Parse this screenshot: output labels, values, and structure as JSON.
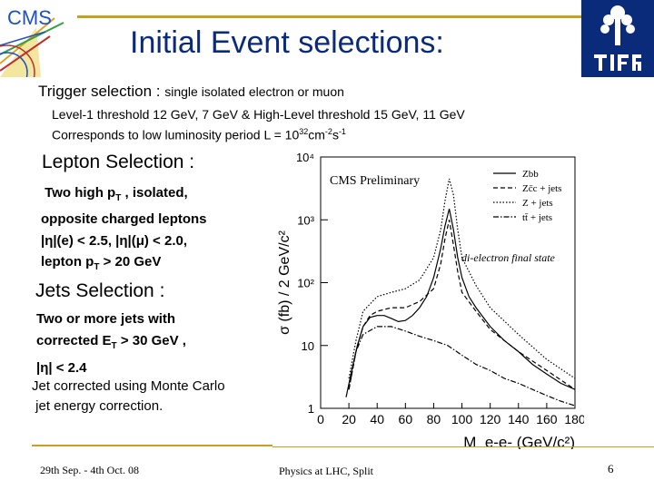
{
  "header": {
    "title": "Initial Event selections:",
    "cms_logo_text": "CMS",
    "logos": [
      "cms-logo",
      "tifr-logo"
    ]
  },
  "trigger": {
    "label": "Trigger   selection : ",
    "detail": "single isolated electron or  muon",
    "line2": "Level-1 threshold 12 GeV, 7 GeV  & High-Level threshold 15 GeV,  11 GeV",
    "line3_prefix": "Corresponds to low luminosity period L = 10",
    "line3_exp": "32",
    "line3_unit": "cm",
    "line3_exp2": "-2",
    "line3_s": "s",
    "line3_exp3": "-1"
  },
  "lepton": {
    "title": "Lepton Selection :",
    "line1": "Two high p",
    "line1_sub": "T",
    "line1_rest": " ,  isolated,",
    "line2": "opposite charged leptons",
    "line3": "|η|(e) < 2.5, |η|(μ) < 2.0,",
    "line4": "lepton p",
    "line4_sub": "T",
    "line4_rest": " > 20 GeV"
  },
  "jets": {
    "title": "Jets Selection :",
    "line1": "Two or more jets with",
    "line2": "corrected  E",
    "line2_sub": "T",
    "line2_rest": " > 30 GeV ,",
    "line3": "|η| < 2.4",
    "corr1": "Jet corrected using Monte Carlo",
    "corr2": "jet energy correction."
  },
  "footer": {
    "left": "29th Sep. - 4th Oct.  08",
    "center": "Physics at LHC, Split",
    "page": "6"
  },
  "chart_data": {
    "type": "line",
    "title": "CMS Preliminary",
    "annotation": "di-electron final state",
    "ylabel": "σ (fb) / 2 GeV/c²",
    "xlabel": "M_e-e- (GeV/c²)",
    "yscale": "log",
    "ylim": [
      1,
      10000
    ],
    "xlim": [
      0,
      180
    ],
    "yticks": [
      "10⁴",
      "10³",
      "10²",
      "10",
      "1"
    ],
    "xticks": [
      "0",
      "20",
      "40",
      "60",
      "80",
      "100",
      "120",
      "140",
      "160",
      "180"
    ],
    "legend_position": "top-right",
    "series": [
      {
        "name": "Zbb",
        "style": "solid",
        "x": [
          18,
          22,
          26,
          30,
          35,
          40,
          45,
          50,
          55,
          60,
          65,
          70,
          75,
          80,
          85,
          88,
          91,
          94,
          97,
          100,
          105,
          110,
          120,
          130,
          140,
          150,
          160,
          170,
          180
        ],
        "y": [
          1.5,
          4,
          10,
          20,
          28,
          30,
          30,
          27,
          24,
          25,
          30,
          40,
          60,
          120,
          350,
          800,
          1500,
          700,
          250,
          120,
          60,
          40,
          20,
          12,
          8,
          5,
          3.5,
          2.5,
          2
        ]
      },
      {
        "name": "Zc̄c + jets",
        "style": "dashed",
        "x": [
          20,
          25,
          30,
          35,
          40,
          50,
          60,
          70,
          80,
          85,
          88,
          91,
          94,
          97,
          100,
          110,
          120,
          140,
          160,
          180
        ],
        "y": [
          2,
          8,
          20,
          30,
          35,
          40,
          40,
          50,
          80,
          200,
          500,
          1000,
          400,
          150,
          70,
          35,
          18,
          8,
          4,
          2
        ]
      },
      {
        "name": "Z + jets",
        "style": "dotted",
        "x": [
          20,
          25,
          30,
          40,
          50,
          60,
          70,
          80,
          85,
          88,
          91,
          94,
          97,
          100,
          110,
          120,
          140,
          160,
          180
        ],
        "y": [
          3,
          12,
          35,
          60,
          70,
          80,
          110,
          250,
          700,
          2000,
          4500,
          2500,
          700,
          250,
          90,
          40,
          15,
          6,
          3
        ]
      },
      {
        "name": "tt̄ + jets",
        "style": "dash-dot",
        "x": [
          20,
          25,
          30,
          40,
          50,
          60,
          70,
          80,
          90,
          100,
          110,
          120,
          130,
          140,
          150,
          160,
          170,
          180
        ],
        "y": [
          2,
          8,
          15,
          20,
          20,
          17,
          14,
          12,
          10,
          7,
          5,
          4,
          3,
          2.5,
          2,
          1.6,
          1.3,
          1.1
        ]
      }
    ]
  }
}
